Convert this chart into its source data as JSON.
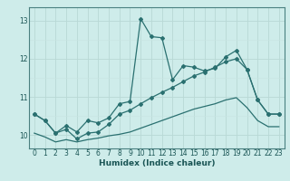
{
  "title": "",
  "xlabel": "Humidex (Indice chaleur)",
  "ylabel": "",
  "bg_color": "#ceecea",
  "line_color": "#2a7070",
  "grid_color_major": "#b8d8d5",
  "grid_color_minor": "#c8e4e2",
  "xlim": [
    -0.5,
    23.5
  ],
  "ylim": [
    9.65,
    13.35
  ],
  "yticks": [
    10,
    11,
    12,
    13
  ],
  "xticks": [
    0,
    1,
    2,
    3,
    4,
    5,
    6,
    7,
    8,
    9,
    10,
    11,
    12,
    13,
    14,
    15,
    16,
    17,
    18,
    19,
    20,
    21,
    22,
    23
  ],
  "series1_x": [
    0,
    1,
    2,
    3,
    4,
    5,
    6,
    7,
    8,
    9,
    10,
    11,
    12,
    13,
    14,
    15,
    16,
    17,
    18,
    19,
    20,
    21,
    22,
    23
  ],
  "series1_y": [
    10.55,
    10.38,
    10.05,
    10.25,
    10.08,
    10.38,
    10.32,
    10.45,
    10.82,
    10.88,
    13.05,
    12.58,
    12.55,
    11.45,
    11.82,
    11.78,
    11.68,
    11.75,
    12.05,
    12.22,
    11.72,
    10.92,
    10.55,
    10.55
  ],
  "series2_x": [
    0,
    1,
    2,
    3,
    4,
    5,
    6,
    7,
    8,
    9,
    10,
    11,
    12,
    13,
    14,
    15,
    16,
    17,
    18,
    19,
    20,
    21,
    22,
    23
  ],
  "series2_y": [
    10.55,
    10.38,
    10.05,
    10.15,
    9.9,
    10.05,
    10.08,
    10.28,
    10.55,
    10.65,
    10.82,
    10.98,
    11.12,
    11.25,
    11.4,
    11.55,
    11.65,
    11.78,
    11.92,
    12.0,
    11.72,
    10.92,
    10.55,
    10.55
  ],
  "series3_x": [
    0,
    1,
    2,
    3,
    4,
    5,
    6,
    7,
    8,
    9,
    10,
    11,
    12,
    13,
    14,
    15,
    16,
    17,
    18,
    19,
    20,
    21,
    22,
    23
  ],
  "series3_y": [
    10.05,
    9.95,
    9.82,
    9.88,
    9.82,
    9.88,
    9.92,
    9.98,
    10.02,
    10.08,
    10.18,
    10.28,
    10.38,
    10.48,
    10.58,
    10.68,
    10.75,
    10.82,
    10.92,
    10.98,
    10.72,
    10.38,
    10.22,
    10.22
  ]
}
